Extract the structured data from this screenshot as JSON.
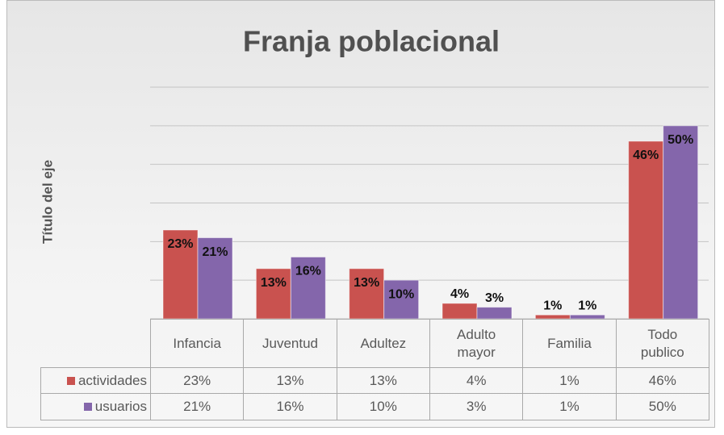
{
  "chart_data": {
    "type": "bar",
    "title": "Franja poblacional",
    "y_label": "Título del eje",
    "categories": [
      "Infancia",
      "Juventud",
      "Adultez",
      "Adulto mayor",
      "Familia",
      "Todo publico"
    ],
    "series": [
      {
        "name": "actividades",
        "color": "#c9524f",
        "values": [
          23,
          13,
          13,
          4,
          1,
          46
        ],
        "value_labels": [
          "23%",
          "13%",
          "13%",
          "4%",
          "1%",
          "46%"
        ]
      },
      {
        "name": "usuarios",
        "color": "#8466ab",
        "values": [
          21,
          16,
          10,
          3,
          1,
          50
        ],
        "value_labels": [
          "21%",
          "16%",
          "10%",
          "3%",
          "1%",
          "50%"
        ]
      }
    ],
    "ylim": [
      0,
      60
    ],
    "yticks": [
      0,
      10,
      20,
      30,
      40,
      50,
      60
    ],
    "grid": true,
    "data_table": true
  }
}
